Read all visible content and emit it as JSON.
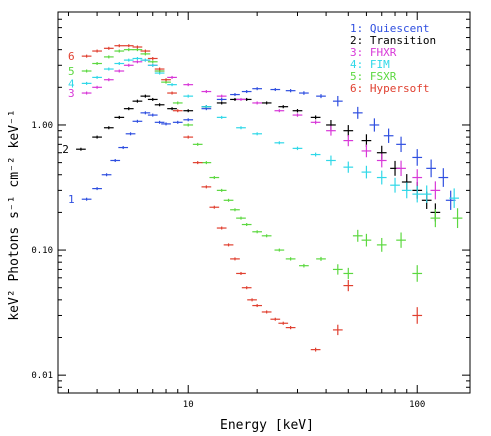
{
  "chart_data": {
    "type": "scatter",
    "title": "",
    "xlabel": "Energy [keV]",
    "ylabel": "keV² Photons s⁻¹ cm⁻² keV⁻¹",
    "x_scale": "log",
    "y_scale": "log",
    "xlim": [
      2.7,
      170
    ],
    "ylim": [
      0.0072,
      8.0
    ],
    "x_ticks": [
      {
        "value": 10,
        "label": "10"
      },
      {
        "value": 100,
        "label": "100"
      }
    ],
    "y_ticks": [
      {
        "value": 0.01,
        "label": "0.01"
      },
      {
        "value": 0.1,
        "label": "0.10"
      },
      {
        "value": 1,
        "label": "1.00"
      }
    ],
    "legend_position": "top-right",
    "series": [
      {
        "id": "1",
        "name": "1: Quiescent",
        "label": "1",
        "color": "#2f4fe0",
        "points": [
          [
            3.6,
            0.255
          ],
          [
            4.0,
            0.31
          ],
          [
            4.4,
            0.4
          ],
          [
            4.8,
            0.52
          ],
          [
            5.2,
            0.66
          ],
          [
            5.6,
            0.85
          ],
          [
            6.0,
            1.07
          ],
          [
            6.5,
            1.25
          ],
          [
            7.0,
            1.2
          ],
          [
            7.5,
            1.05
          ],
          [
            8.0,
            1.02
          ],
          [
            9.0,
            1.05
          ],
          [
            10,
            1.1
          ],
          [
            12,
            1.35
          ],
          [
            14,
            1.6
          ],
          [
            16,
            1.75
          ],
          [
            18,
            1.85
          ],
          [
            20,
            1.95
          ],
          [
            24,
            1.92
          ],
          [
            28,
            1.88
          ],
          [
            32,
            1.8
          ],
          [
            38,
            1.7
          ],
          [
            45,
            1.55
          ],
          [
            55,
            1.25
          ],
          [
            65,
            1.0
          ],
          [
            75,
            0.82
          ],
          [
            85,
            0.7
          ],
          [
            100,
            0.55
          ],
          [
            115,
            0.45
          ],
          [
            130,
            0.38
          ],
          [
            140,
            0.25
          ]
        ]
      },
      {
        "id": "2",
        "name": "2: Transition",
        "label": "2",
        "color": "#000000",
        "points": [
          [
            3.4,
            0.64
          ],
          [
            4.0,
            0.8
          ],
          [
            4.5,
            0.95
          ],
          [
            5.0,
            1.15
          ],
          [
            5.5,
            1.35
          ],
          [
            6.0,
            1.55
          ],
          [
            6.5,
            1.7
          ],
          [
            7.0,
            1.6
          ],
          [
            7.5,
            1.45
          ],
          [
            8.5,
            1.35
          ],
          [
            10,
            1.3
          ],
          [
            12,
            1.4
          ],
          [
            14,
            1.5
          ],
          [
            16,
            1.6
          ],
          [
            18,
            1.6
          ],
          [
            22,
            1.5
          ],
          [
            26,
            1.4
          ],
          [
            30,
            1.3
          ],
          [
            36,
            1.15
          ],
          [
            42,
            1.0
          ],
          [
            50,
            0.9
          ],
          [
            60,
            0.75
          ],
          [
            70,
            0.6
          ],
          [
            80,
            0.45
          ],
          [
            90,
            0.35
          ],
          [
            100,
            0.3
          ],
          [
            110,
            0.25
          ],
          [
            120,
            0.2
          ]
        ]
      },
      {
        "id": "3",
        "name": "3: FHXR",
        "label": "3",
        "color": "#d838d8",
        "points": [
          [
            3.6,
            1.8
          ],
          [
            4.0,
            2.0
          ],
          [
            4.5,
            2.3
          ],
          [
            5.0,
            2.7
          ],
          [
            5.5,
            3.0
          ],
          [
            6.0,
            3.2
          ],
          [
            6.5,
            3.3
          ],
          [
            7.0,
            3.0
          ],
          [
            7.5,
            2.7
          ],
          [
            8.5,
            2.4
          ],
          [
            10,
            2.1
          ],
          [
            12,
            1.85
          ],
          [
            14,
            1.7
          ],
          [
            17,
            1.6
          ],
          [
            20,
            1.5
          ],
          [
            25,
            1.3
          ],
          [
            30,
            1.2
          ],
          [
            36,
            1.05
          ],
          [
            42,
            0.9
          ],
          [
            50,
            0.75
          ],
          [
            60,
            0.62
          ],
          [
            70,
            0.52
          ],
          [
            85,
            0.45
          ],
          [
            100,
            0.38
          ],
          [
            120,
            0.3
          ]
        ]
      },
      {
        "id": "4",
        "name": "4: FIM",
        "label": "4",
        "color": "#30d8e8",
        "points": [
          [
            3.6,
            2.15
          ],
          [
            4.0,
            2.4
          ],
          [
            4.5,
            2.8
          ],
          [
            5.0,
            3.1
          ],
          [
            5.5,
            3.3
          ],
          [
            6.0,
            3.4
          ],
          [
            6.5,
            3.3
          ],
          [
            7.0,
            3.0
          ],
          [
            7.5,
            2.6
          ],
          [
            8.5,
            2.1
          ],
          [
            10,
            1.7
          ],
          [
            12,
            1.4
          ],
          [
            14,
            1.15
          ],
          [
            17,
            0.95
          ],
          [
            20,
            0.85
          ],
          [
            25,
            0.72
          ],
          [
            30,
            0.65
          ],
          [
            36,
            0.58
          ],
          [
            42,
            0.52
          ],
          [
            50,
            0.46
          ],
          [
            60,
            0.42
          ],
          [
            70,
            0.38
          ],
          [
            80,
            0.33
          ],
          [
            90,
            0.3
          ],
          [
            100,
            0.28
          ],
          [
            110,
            0.28
          ],
          [
            145,
            0.26
          ]
        ]
      },
      {
        "id": "5",
        "name": "5: FSXR",
        "label": "5",
        "color": "#5cd840",
        "points": [
          [
            3.6,
            2.7
          ],
          [
            4.0,
            3.1
          ],
          [
            4.5,
            3.5
          ],
          [
            5.0,
            3.9
          ],
          [
            5.5,
            4.0
          ],
          [
            6.0,
            4.0
          ],
          [
            6.5,
            3.7
          ],
          [
            7.0,
            3.2
          ],
          [
            7.5,
            2.7
          ],
          [
            8.0,
            2.2
          ],
          [
            9.0,
            1.5
          ],
          [
            10,
            1.0
          ],
          [
            11,
            0.7
          ],
          [
            12,
            0.5
          ],
          [
            13,
            0.38
          ],
          [
            14,
            0.3
          ],
          [
            15,
            0.25
          ],
          [
            16,
            0.21
          ],
          [
            17,
            0.18
          ],
          [
            18,
            0.16
          ],
          [
            20,
            0.14
          ],
          [
            22,
            0.13
          ],
          [
            25,
            0.1
          ],
          [
            28,
            0.085
          ],
          [
            32,
            0.075
          ],
          [
            38,
            0.085
          ],
          [
            45,
            0.07
          ],
          [
            50,
            0.065
          ],
          [
            55,
            0.13
          ],
          [
            60,
            0.12
          ],
          [
            70,
            0.11
          ],
          [
            85,
            0.12
          ],
          [
            100,
            0.065
          ],
          [
            120,
            0.18
          ],
          [
            150,
            0.18
          ]
        ]
      },
      {
        "id": "6",
        "name": "6: Hypersoft",
        "label": "6",
        "color": "#e04030",
        "points": [
          [
            3.6,
            3.55
          ],
          [
            4.0,
            3.9
          ],
          [
            4.5,
            4.1
          ],
          [
            5.0,
            4.3
          ],
          [
            5.5,
            4.3
          ],
          [
            6.0,
            4.2
          ],
          [
            6.5,
            3.9
          ],
          [
            7.0,
            3.4
          ],
          [
            7.5,
            2.8
          ],
          [
            8.0,
            2.3
          ],
          [
            8.5,
            1.8
          ],
          [
            9.0,
            1.3
          ],
          [
            10,
            0.8
          ],
          [
            11,
            0.5
          ],
          [
            12,
            0.32
          ],
          [
            13,
            0.22
          ],
          [
            14,
            0.15
          ],
          [
            15,
            0.11
          ],
          [
            16,
            0.085
          ],
          [
            17,
            0.065
          ],
          [
            18,
            0.05
          ],
          [
            19,
            0.04
          ],
          [
            20,
            0.036
          ],
          [
            22,
            0.032
          ],
          [
            24,
            0.028
          ],
          [
            26,
            0.026
          ],
          [
            28,
            0.024
          ],
          [
            36,
            0.016
          ],
          [
            45,
            0.023
          ],
          [
            50,
            0.052
          ],
          [
            100,
            0.03
          ]
        ]
      }
    ]
  }
}
